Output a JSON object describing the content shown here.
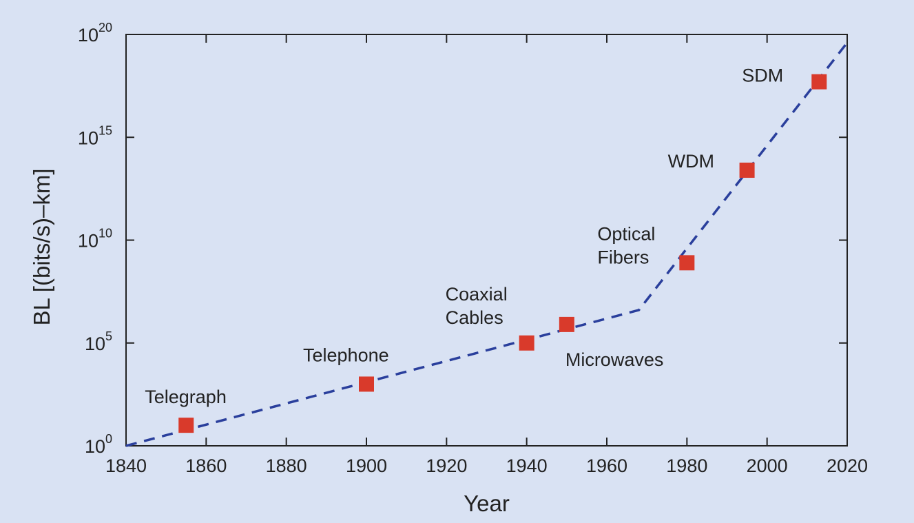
{
  "chart_data": {
    "type": "scatter",
    "title": "",
    "xlabel": "Year",
    "ylabel": "BL [(bits/s)–km]",
    "xlim": [
      1840,
      2020
    ],
    "ylim_exponent": [
      0,
      20
    ],
    "y_scale": "log10",
    "x_ticks": [
      1840,
      1860,
      1880,
      1900,
      1920,
      1940,
      1960,
      1980,
      2000,
      2020
    ],
    "y_ticks": [
      {
        "base": "10",
        "exp": "0"
      },
      {
        "base": "10",
        "exp": "5"
      },
      {
        "base": "10",
        "exp": "10"
      },
      {
        "base": "10",
        "exp": "15"
      },
      {
        "base": "10",
        "exp": "20"
      }
    ],
    "points": [
      {
        "label": "Telegraph",
        "year": 1855,
        "log10_bl": 1.0
      },
      {
        "label": "Telephone",
        "year": 1900,
        "log10_bl": 3.0
      },
      {
        "label": "Coaxial Cables",
        "year": 1940,
        "log10_bl": 5.0,
        "label_lines": [
          "Coaxial",
          "Cables"
        ]
      },
      {
        "label": "Microwaves",
        "year": 1950,
        "log10_bl": 5.9
      },
      {
        "label": "Optical Fibers",
        "year": 1980,
        "log10_bl": 8.9,
        "label_lines": [
          "Optical",
          "Fibers"
        ]
      },
      {
        "label": "WDM",
        "year": 1995,
        "log10_bl": 13.4
      },
      {
        "label": "SDM",
        "year": 2013,
        "log10_bl": 17.7
      }
    ],
    "trend_line": {
      "style": "dashed",
      "points": [
        {
          "year": 1840,
          "log10_bl": 0.0
        },
        {
          "year": 1968,
          "log10_bl": 6.6
        },
        {
          "year": 2020,
          "log10_bl": 19.6
        }
      ]
    },
    "colors": {
      "background": "#d9e2f3",
      "marker": "#d93a2b",
      "trend": "#2a3f9c",
      "axis": "#222222"
    }
  }
}
